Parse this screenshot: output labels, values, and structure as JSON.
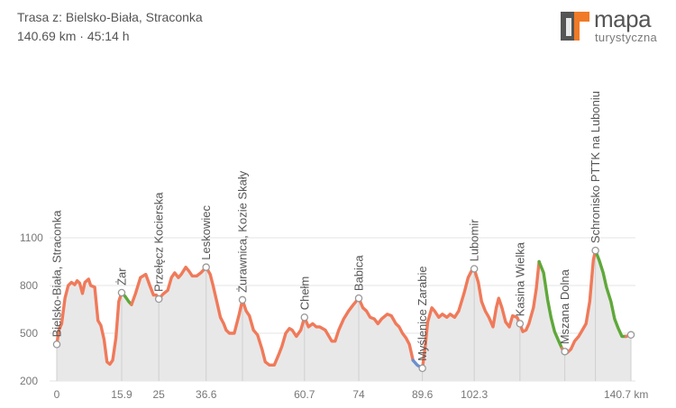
{
  "header": {
    "title": "Trasa z: Bielsko-Biała, Straconka",
    "stats": "140.69 km · 45:14 h"
  },
  "logo": {
    "line1": "mapa",
    "line2": "turystyczna",
    "icon": "map-logo-icon",
    "colors": {
      "orange": "#f07a27",
      "gray": "#555555"
    }
  },
  "chart_data": {
    "type": "area",
    "title": "",
    "xlabel": "",
    "ylabel": "",
    "x_unit": "km",
    "xlim": [
      0,
      140.7
    ],
    "ylim": [
      200,
      1100
    ],
    "x_ticks": [
      {
        "value": 0,
        "label": "0"
      },
      {
        "value": 15.9,
        "label": "15.9"
      },
      {
        "value": 25,
        "label": "25"
      },
      {
        "value": 36.6,
        "label": "36.6"
      },
      {
        "value": 60.7,
        "label": "60.7"
      },
      {
        "value": 74,
        "label": "74"
      },
      {
        "value": 89.6,
        "label": "89.6"
      },
      {
        "value": 102.3,
        "label": "102.3"
      },
      {
        "value": 140.7,
        "label": "140.7 km"
      }
    ],
    "y_ticks": [
      {
        "value": 200,
        "label": "200"
      },
      {
        "value": 500,
        "label": "500"
      },
      {
        "value": 800,
        "label": "800"
      },
      {
        "value": 1100,
        "label": "1100"
      }
    ],
    "grid": true,
    "colors": {
      "uphill": "#f07a5a",
      "downhill": "#5fa83a",
      "flat": "#6a8fd0",
      "fill": "#e8e8e8",
      "marker": "#999999",
      "grid": "#e6e6e6"
    },
    "waypoints": [
      {
        "name": "Bielsko-Biała, Straconka",
        "km": 0,
        "elev": 430
      },
      {
        "name": "Żar",
        "km": 15.9,
        "elev": 755
      },
      {
        "name": "Przełęcz Kocierska",
        "km": 25,
        "elev": 715
      },
      {
        "name": "Leskowiec",
        "km": 36.6,
        "elev": 915
      },
      {
        "name": "Żurawnica, Kozie Skały",
        "km": 45.5,
        "elev": 710
      },
      {
        "name": "Chełm",
        "km": 60.7,
        "elev": 600
      },
      {
        "name": "Babica",
        "km": 74,
        "elev": 720
      },
      {
        "name": "Myślenice Zarabie",
        "km": 89.6,
        "elev": 280
      },
      {
        "name": "Lubomir",
        "km": 102.3,
        "elev": 905
      },
      {
        "name": "Kasina Wielka",
        "km": 113.5,
        "elev": 560
      },
      {
        "name": "Mszana Dolna",
        "km": 124.5,
        "elev": 385
      },
      {
        "name": "Schronisko PTTK na Luboniu",
        "km": 132,
        "elev": 1020
      },
      {
        "name": "",
        "km": 140.7,
        "elev": 490
      }
    ],
    "profile": [
      [
        0,
        430
      ],
      [
        0.5,
        520
      ],
      [
        1.2,
        560
      ],
      [
        2.0,
        720
      ],
      [
        2.8,
        800
      ],
      [
        3.6,
        820
      ],
      [
        4.4,
        805
      ],
      [
        5.0,
        830
      ],
      [
        5.6,
        815
      ],
      [
        6.3,
        750
      ],
      [
        6.9,
        820
      ],
      [
        7.8,
        840
      ],
      [
        8.3,
        800
      ],
      [
        9.3,
        790
      ],
      [
        10.1,
        580
      ],
      [
        10.8,
        550
      ],
      [
        11.6,
        460
      ],
      [
        12.3,
        320
      ],
      [
        13.0,
        305
      ],
      [
        13.7,
        330
      ],
      [
        14.5,
        470
      ],
      [
        15.2,
        700
      ],
      [
        15.9,
        755
      ],
      [
        16.8,
        730
      ],
      [
        17.6,
        700
      ],
      [
        18.3,
        680
      ],
      [
        19.3,
        750
      ],
      [
        20.5,
        850
      ],
      [
        21.8,
        870
      ],
      [
        22.8,
        800
      ],
      [
        23.7,
        740
      ],
      [
        24.4,
        740
      ],
      [
        25,
        715
      ],
      [
        26.0,
        745
      ],
      [
        27.2,
        770
      ],
      [
        28.1,
        850
      ],
      [
        28.9,
        880
      ],
      [
        29.8,
        850
      ],
      [
        30.5,
        870
      ],
      [
        31.6,
        915
      ],
      [
        32.4,
        890
      ],
      [
        33.2,
        860
      ],
      [
        34.3,
        860
      ],
      [
        35.3,
        880
      ],
      [
        36.6,
        915
      ],
      [
        37.6,
        870
      ],
      [
        38.3,
        800
      ],
      [
        39.2,
        700
      ],
      [
        40.1,
        600
      ],
      [
        40.9,
        560
      ],
      [
        41.5,
        520
      ],
      [
        42.3,
        500
      ],
      [
        43.5,
        500
      ],
      [
        44.7,
        620
      ],
      [
        45.5,
        710
      ],
      [
        46.4,
        640
      ],
      [
        47.2,
        610
      ],
      [
        48.2,
        520
      ],
      [
        49.2,
        490
      ],
      [
        50.3,
        400
      ],
      [
        51.1,
        320
      ],
      [
        52.1,
        300
      ],
      [
        53.3,
        300
      ],
      [
        54.3,
        360
      ],
      [
        55.2,
        420
      ],
      [
        56.1,
        500
      ],
      [
        57.0,
        530
      ],
      [
        57.7,
        520
      ],
      [
        58.7,
        480
      ],
      [
        59.8,
        520
      ],
      [
        60.7,
        600
      ],
      [
        61.7,
        540
      ],
      [
        62.7,
        560
      ],
      [
        63.6,
        540
      ],
      [
        64.4,
        540
      ],
      [
        65.8,
        520
      ],
      [
        66.7,
        480
      ],
      [
        67.4,
        450
      ],
      [
        68.2,
        450
      ],
      [
        69.1,
        520
      ],
      [
        70.3,
        590
      ],
      [
        71.5,
        640
      ],
      [
        72.7,
        680
      ],
      [
        74,
        720
      ],
      [
        75.0,
        660
      ],
      [
        75.9,
        640
      ],
      [
        76.8,
        600
      ],
      [
        77.8,
        590
      ],
      [
        78.7,
        560
      ],
      [
        79.6,
        590
      ],
      [
        81.0,
        620
      ],
      [
        82.0,
        610
      ],
      [
        83.1,
        560
      ],
      [
        83.9,
        540
      ],
      [
        84.7,
        500
      ],
      [
        85.6,
        470
      ],
      [
        86.4,
        430
      ],
      [
        87.3,
        330
      ],
      [
        88.3,
        300
      ],
      [
        89.6,
        280
      ],
      [
        90.3,
        420
      ],
      [
        90.9,
        570
      ],
      [
        91.9,
        660
      ],
      [
        92.6,
        640
      ],
      [
        93.6,
        600
      ],
      [
        94.5,
        620
      ],
      [
        95.6,
        600
      ],
      [
        96.4,
        620
      ],
      [
        97.5,
        600
      ],
      [
        98.5,
        640
      ],
      [
        99.8,
        750
      ],
      [
        100.8,
        850
      ],
      [
        101.8,
        900
      ],
      [
        102.3,
        905
      ],
      [
        103.3,
        820
      ],
      [
        104.1,
        700
      ],
      [
        105.0,
        640
      ],
      [
        105.9,
        600
      ],
      [
        106.9,
        540
      ],
      [
        107.7,
        660
      ],
      [
        108.3,
        720
      ],
      [
        109.1,
        660
      ],
      [
        110.0,
        570
      ],
      [
        110.9,
        540
      ],
      [
        111.7,
        610
      ],
      [
        112.8,
        600
      ],
      [
        113.5,
        560
      ],
      [
        114.2,
        510
      ],
      [
        115.0,
        520
      ],
      [
        115.7,
        560
      ],
      [
        116.8,
        660
      ],
      [
        117.5,
        780
      ],
      [
        118.2,
        950
      ],
      [
        119.3,
        880
      ],
      [
        120.3,
        710
      ],
      [
        121.1,
        600
      ],
      [
        122.0,
        510
      ],
      [
        123.0,
        450
      ],
      [
        123.8,
        405
      ],
      [
        124.5,
        385
      ],
      [
        125.2,
        380
      ],
      [
        126.0,
        400
      ],
      [
        126.9,
        450
      ],
      [
        127.9,
        480
      ],
      [
        128.8,
        520
      ],
      [
        129.7,
        560
      ],
      [
        130.6,
        700
      ],
      [
        131.5,
        960
      ],
      [
        132,
        1020
      ],
      [
        132.9,
        960
      ],
      [
        133.9,
        880
      ],
      [
        134.7,
        790
      ],
      [
        135.8,
        700
      ],
      [
        136.7,
        590
      ],
      [
        137.6,
        530
      ],
      [
        138.5,
        480
      ],
      [
        139.5,
        480
      ],
      [
        140.7,
        490
      ]
    ],
    "downhill_ranges": [
      [
        16.2,
        18.3
      ],
      [
        118.6,
        123.8
      ],
      [
        132.1,
        139.5
      ]
    ],
    "flat_ranges": [
      [
        87.3,
        89.6
      ]
    ]
  }
}
